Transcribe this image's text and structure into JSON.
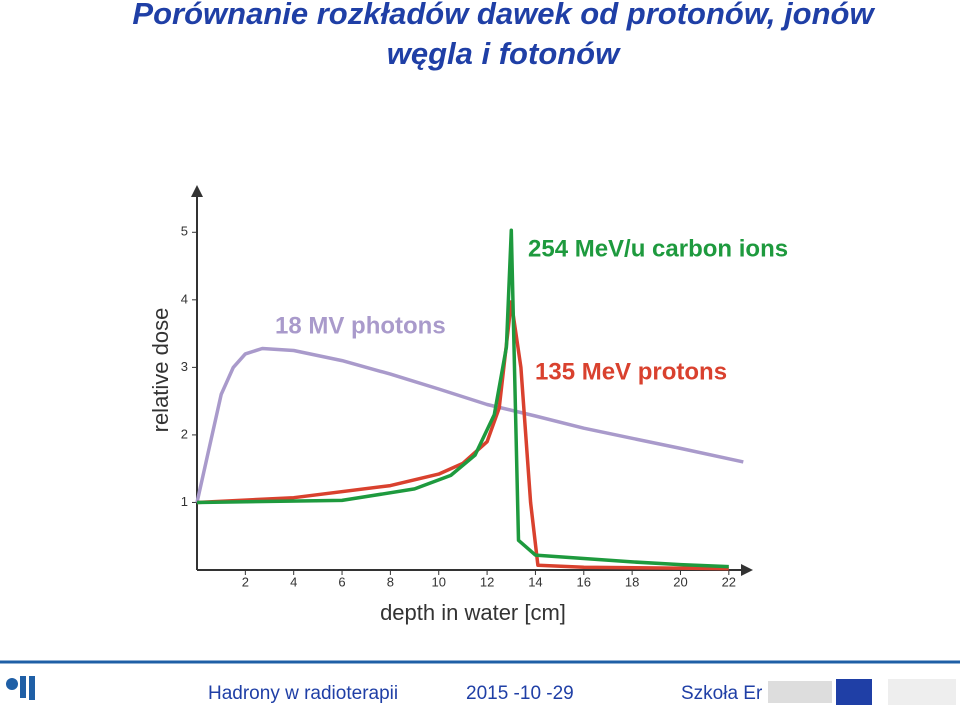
{
  "slide": {
    "title_lines": [
      "Porównanie rozkładów dawek od protonów, jonów",
      "węgla i fotonów"
    ]
  },
  "chart_data": {
    "type": "line",
    "xlabel": "depth in water [cm]",
    "ylabel": "relative dose",
    "xlim": [
      0,
      23
    ],
    "ylim": [
      0,
      5.7
    ],
    "xticks": [
      2,
      4,
      6,
      8,
      10,
      12,
      14,
      16,
      18,
      20,
      22
    ],
    "yticks": [
      1,
      2,
      3,
      4,
      5
    ],
    "series": [
      {
        "name": "18 MV photons",
        "color": "#a99acb",
        "x": [
          0,
          0.5,
          1,
          1.5,
          2,
          2.7,
          4,
          6,
          8,
          10,
          12,
          14,
          16,
          18,
          20,
          22.6
        ],
        "values": [
          1.0,
          1.8,
          2.6,
          3.0,
          3.2,
          3.28,
          3.25,
          3.1,
          2.9,
          2.68,
          2.45,
          2.28,
          2.1,
          1.95,
          1.8,
          1.6
        ]
      },
      {
        "name": "135 MeV protons",
        "color": "#d9412e",
        "x": [
          0,
          4,
          8,
          10,
          11,
          12,
          12.5,
          13,
          13.4,
          13.8,
          14.1,
          16,
          22
        ],
        "values": [
          1.0,
          1.07,
          1.25,
          1.42,
          1.58,
          1.9,
          2.4,
          3.97,
          3.0,
          1.0,
          0.07,
          0.04,
          0.02
        ]
      },
      {
        "name": "254 MeV/u carbon ions",
        "color": "#1e9a3e",
        "x": [
          0,
          6,
          9,
          10.5,
          11.5,
          12.3,
          12.8,
          13.0,
          13.3,
          14,
          16,
          18,
          20,
          22
        ],
        "values": [
          1.0,
          1.03,
          1.2,
          1.4,
          1.7,
          2.3,
          3.3,
          5.03,
          0.44,
          0.22,
          0.17,
          0.12,
          0.08,
          0.05
        ]
      }
    ]
  },
  "footer": {
    "course": "Hadrony w radioterapii",
    "date": "2015 -10 -29",
    "school": "Szkoła Er"
  }
}
